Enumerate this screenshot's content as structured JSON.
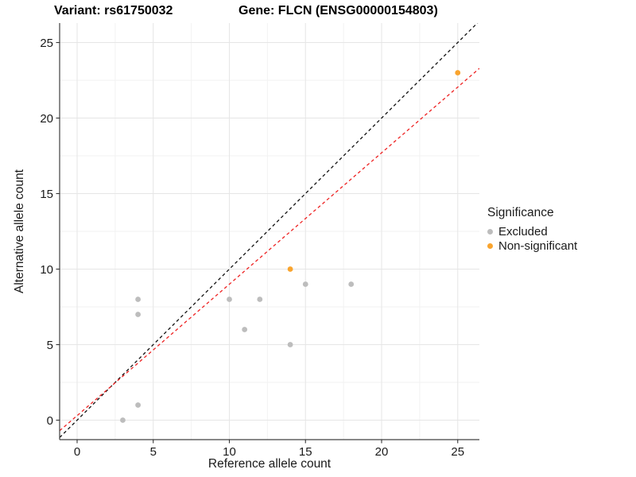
{
  "header": {
    "variant_title": "Variant: rs61750032",
    "gene_title": "Gene: FLCN (ENSG00000154803)"
  },
  "axes": {
    "x_label": "Reference allele count",
    "y_label": "Alternative allele count"
  },
  "legend": {
    "title": "Significance",
    "items": [
      {
        "label": "Excluded",
        "color": "#BDBDBD"
      },
      {
        "label": "Non-significant",
        "color": "#F9A42E"
      }
    ]
  },
  "chart_data": {
    "type": "scatter",
    "title": "Variant: rs61750032  Gene: FLCN (ENSG00000154803)",
    "xlabel": "Reference allele count",
    "ylabel": "Alternative allele count",
    "xlim": [
      -1.3,
      26.4
    ],
    "ylim": [
      -1.3,
      26.3
    ],
    "x_ticks": [
      0,
      5,
      10,
      15,
      20,
      25
    ],
    "y_ticks": [
      0,
      5,
      10,
      15,
      20,
      25
    ],
    "grid": "major+minor",
    "legend_position": "right",
    "series": [
      {
        "name": "Excluded",
        "color": "#BDBDBD",
        "points": [
          [
            3,
            0
          ],
          [
            4,
            1
          ],
          [
            4,
            7
          ],
          [
            4,
            8
          ],
          [
            10,
            8
          ],
          [
            11,
            6
          ],
          [
            12,
            8
          ],
          [
            14,
            5
          ],
          [
            15,
            9
          ],
          [
            18,
            9
          ]
        ]
      },
      {
        "name": "Non-significant",
        "color": "#F9A42E",
        "points": [
          [
            14,
            10
          ],
          [
            25,
            23
          ]
        ]
      }
    ],
    "lines": [
      {
        "name": "identity-line",
        "slope": 1,
        "intercept": 0,
        "color": "#111111",
        "style": "dashed"
      },
      {
        "name": "fitted-line",
        "slope": 0.87,
        "intercept": 0.3,
        "color": "#EE2222",
        "style": "dashed"
      }
    ]
  }
}
